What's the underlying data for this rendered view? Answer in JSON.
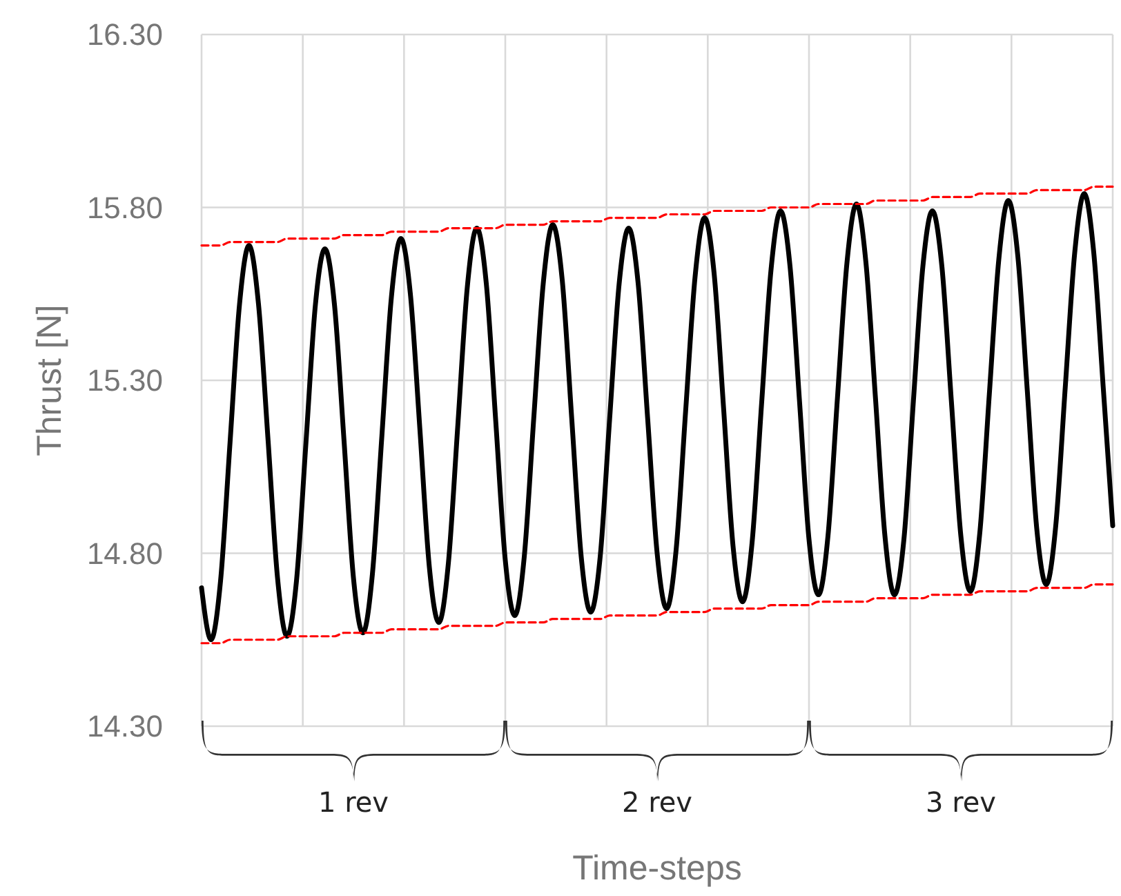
{
  "chart_data": {
    "type": "line",
    "xlabel": "Time-steps",
    "ylabel": "Thrust [N]",
    "categories": [
      null,
      null,
      null,
      null,
      null,
      null,
      null,
      null,
      null,
      null,
      null,
      null,
      null,
      null,
      null,
      null,
      null,
      null,
      null,
      null,
      null,
      null,
      null,
      null,
      null,
      null,
      null,
      null,
      null,
      null,
      null,
      null,
      null,
      null,
      null,
      null,
      null,
      null,
      null,
      null,
      null,
      null,
      null,
      null,
      null,
      null,
      null,
      null,
      null,
      null,
      null,
      null,
      null,
      null,
      null,
      null,
      null,
      null,
      null,
      null,
      null,
      null,
      null,
      null,
      null,
      null,
      null,
      null,
      null,
      null,
      null,
      null,
      null,
      null,
      null,
      null,
      null,
      null,
      null,
      null,
      null,
      null,
      null,
      null,
      null,
      null,
      null,
      null,
      null,
      null,
      null,
      null,
      null,
      null,
      null,
      null,
      null
    ],
    "ylim": [
      14.3,
      16.3
    ],
    "yticks": [
      {
        "value": 14.3,
        "label": "14.30"
      },
      {
        "value": 14.8,
        "label": "14.80"
      },
      {
        "value": 15.3,
        "label": "15.30"
      },
      {
        "value": 15.8,
        "label": "15.80"
      },
      {
        "value": 16.3,
        "label": "16.30"
      }
    ],
    "grid": true,
    "tick_labels": "y",
    "series": [
      {
        "color": "#000000",
        "line_style": "solid",
        "values": [
          14.7,
          14.55,
          14.72,
          15.12,
          15.52,
          15.69,
          15.52,
          15.13,
          14.73,
          14.56,
          14.72,
          15.12,
          15.52,
          15.68,
          15.52,
          15.13,
          14.73,
          14.57,
          14.74,
          15.14,
          15.54,
          15.71,
          15.55,
          15.16,
          14.76,
          14.6,
          14.77,
          15.17,
          15.57,
          15.74,
          15.58,
          15.18,
          14.78,
          14.62,
          14.79,
          15.19,
          15.58,
          15.75,
          15.59,
          15.19,
          14.79,
          14.63,
          14.79,
          15.19,
          15.58,
          15.74,
          15.58,
          15.19,
          14.8,
          14.64,
          14.81,
          15.21,
          15.6,
          15.77,
          15.61,
          15.22,
          14.82,
          14.66,
          14.83,
          15.23,
          15.62,
          15.79,
          15.63,
          15.24,
          14.84,
          14.68,
          14.85,
          15.25,
          15.64,
          15.81,
          15.64,
          15.25,
          14.85,
          14.68,
          14.84,
          15.24,
          15.63,
          15.79,
          15.63,
          15.24,
          14.85,
          14.69,
          14.86,
          15.26,
          15.65,
          15.82,
          15.66,
          15.27,
          14.87,
          14.71,
          14.88,
          15.28,
          15.67,
          15.84,
          15.67,
          15.28,
          14.88
        ]
      },
      {
        "color": "#ff0000",
        "line_style": "dashed",
        "values": [
          15.69,
          15.69,
          15.69,
          15.7,
          15.7,
          15.7,
          15.7,
          15.7,
          15.7,
          15.71,
          15.71,
          15.71,
          15.71,
          15.71,
          15.71,
          15.72,
          15.72,
          15.72,
          15.72,
          15.72,
          15.73,
          15.73,
          15.73,
          15.73,
          15.73,
          15.73,
          15.74,
          15.74,
          15.74,
          15.74,
          15.74,
          15.74,
          15.75,
          15.75,
          15.75,
          15.75,
          15.75,
          15.76,
          15.76,
          15.76,
          15.76,
          15.76,
          15.76,
          15.77,
          15.77,
          15.77,
          15.77,
          15.77,
          15.77,
          15.78,
          15.78,
          15.78,
          15.78,
          15.78,
          15.79,
          15.79,
          15.79,
          15.79,
          15.79,
          15.79,
          15.8,
          15.8,
          15.8,
          15.8,
          15.8,
          15.81,
          15.81,
          15.81,
          15.81,
          15.81,
          15.81,
          15.82,
          15.82,
          15.82,
          15.82,
          15.82,
          15.82,
          15.83,
          15.83,
          15.83,
          15.83,
          15.83,
          15.84,
          15.84,
          15.84,
          15.84,
          15.84,
          15.84,
          15.85,
          15.85,
          15.85,
          15.85,
          15.85,
          15.85,
          15.86,
          15.86,
          15.86
        ]
      },
      {
        "color": "#ff0000",
        "line_style": "dashed",
        "values": [
          14.54,
          14.54,
          14.54,
          14.55,
          14.55,
          14.55,
          14.55,
          14.55,
          14.55,
          14.56,
          14.56,
          14.56,
          14.56,
          14.56,
          14.56,
          14.57,
          14.57,
          14.57,
          14.57,
          14.57,
          14.58,
          14.58,
          14.58,
          14.58,
          14.58,
          14.58,
          14.59,
          14.59,
          14.59,
          14.59,
          14.59,
          14.59,
          14.6,
          14.6,
          14.6,
          14.6,
          14.6,
          14.61,
          14.61,
          14.61,
          14.61,
          14.61,
          14.61,
          14.62,
          14.62,
          14.62,
          14.62,
          14.62,
          14.62,
          14.63,
          14.63,
          14.63,
          14.63,
          14.63,
          14.64,
          14.64,
          14.64,
          14.64,
          14.64,
          14.64,
          14.65,
          14.65,
          14.65,
          14.65,
          14.65,
          14.66,
          14.66,
          14.66,
          14.66,
          14.66,
          14.66,
          14.67,
          14.67,
          14.67,
          14.67,
          14.67,
          14.67,
          14.68,
          14.68,
          14.68,
          14.68,
          14.68,
          14.69,
          14.69,
          14.69,
          14.69,
          14.69,
          14.69,
          14.7,
          14.7,
          14.7,
          14.7,
          14.7,
          14.7,
          14.71,
          14.71,
          14.71
        ]
      }
    ],
    "annotations": [
      "1 rev",
      "2 rev",
      "3 rev"
    ]
  }
}
